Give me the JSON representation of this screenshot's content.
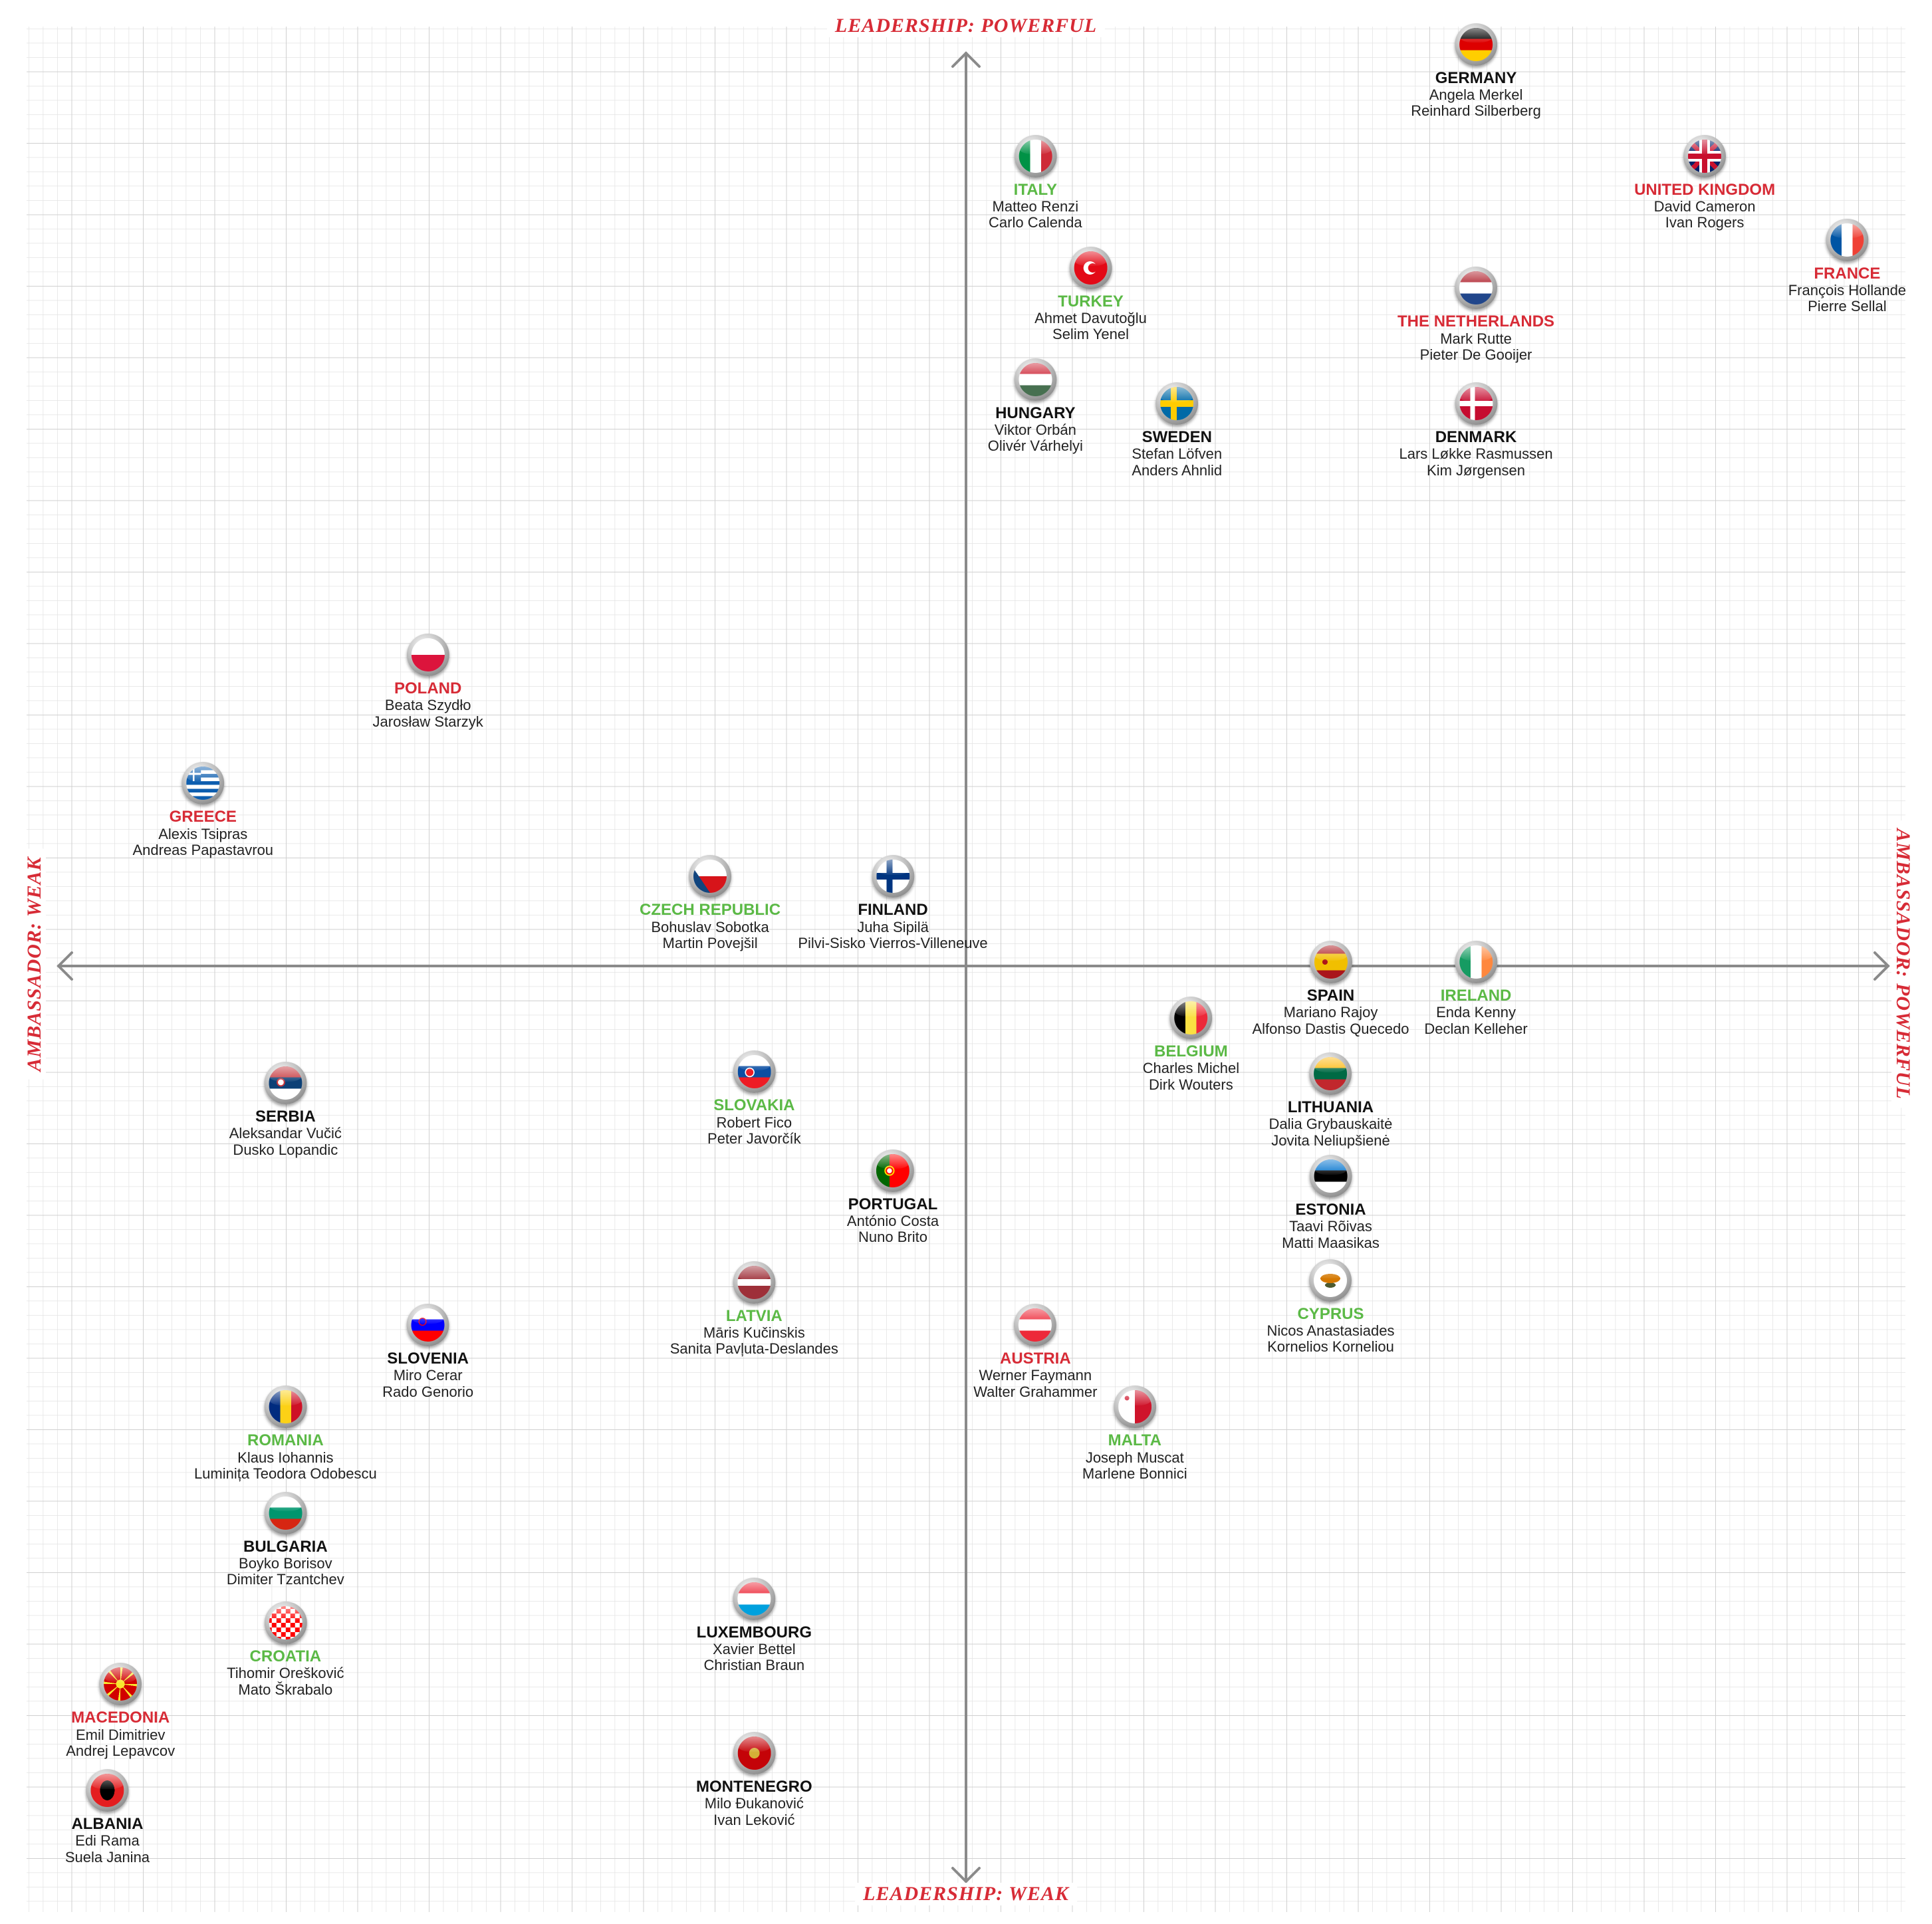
{
  "axes": {
    "top": "LEADERSHIP: POWERFUL",
    "bottom": "LEADERSHIP: WEAK",
    "left": "AMBASSADOR: WEAK",
    "right": "AMBASSADOR: POWERFUL"
  },
  "colors": {
    "red": "#d72b36",
    "green": "#5bb946",
    "black": "#111111",
    "grid": "#dddddd",
    "axis": "#8a8a8a"
  },
  "chart_data": {
    "type": "scatter",
    "x_label": "AMBASSADOR",
    "y_label": "LEADERSHIP",
    "xlim": [
      -1,
      1
    ],
    "ylim": [
      -1,
      1
    ],
    "grid": true,
    "note_colors": "country names are colored red, green or black",
    "points": [
      {
        "country": "GERMANY",
        "people": [
          "Angela Merkel",
          "Reinhard Silberberg"
        ],
        "color": "black",
        "flag": "germany",
        "x": 0.544,
        "y": 0.986
      },
      {
        "country": "ITALY",
        "people": [
          "Matteo Renzi",
          "Carlo Calenda"
        ],
        "color": "green",
        "flag": "italy",
        "x": 0.074,
        "y": 0.866
      },
      {
        "country": "UNITED KINGDOM",
        "people": [
          "David Cameron",
          "Ivan Rogers"
        ],
        "color": "red",
        "flag": "uk",
        "x": 0.788,
        "y": 0.866
      },
      {
        "country": "FRANCE",
        "people": [
          "François Hollande",
          "Pierre Sellal"
        ],
        "color": "red",
        "flag": "france",
        "x": 0.94,
        "y": 0.776
      },
      {
        "country": "TURKEY",
        "people": [
          "Ahmet Davutoğlu",
          "Selim Yenel"
        ],
        "color": "green",
        "flag": "turkey",
        "x": 0.133,
        "y": 0.746
      },
      {
        "country": "THE NETHERLANDS",
        "people": [
          "Mark Rutte",
          "Pieter De Gooijer"
        ],
        "color": "red",
        "flag": "netherlands",
        "x": 0.544,
        "y": 0.724
      },
      {
        "country": "HUNGARY",
        "people": [
          "Viktor Orbán",
          "Olivér Várhelyi"
        ],
        "color": "black",
        "flag": "hungary",
        "x": 0.074,
        "y": 0.626
      },
      {
        "country": "SWEDEN",
        "people": [
          "Stefan Löfven",
          "Anders Ahnlid"
        ],
        "color": "black",
        "flag": "sweden",
        "x": 0.225,
        "y": 0.6
      },
      {
        "country": "DENMARK",
        "people": [
          "Lars Løkke Rasmussen",
          "Kim Jørgensen"
        ],
        "color": "black",
        "flag": "denmark",
        "x": 0.544,
        "y": 0.6
      },
      {
        "country": "POLAND",
        "people": [
          "Beata Szydło",
          "Jarosław Starzyk"
        ],
        "color": "red",
        "flag": "poland",
        "x": -0.574,
        "y": 0.33
      },
      {
        "country": "GREECE",
        "people": [
          "Alexis Tsipras",
          "Andreas Papastavrou"
        ],
        "color": "red",
        "flag": "greece",
        "x": -0.814,
        "y": 0.192
      },
      {
        "country": "CZECH REPUBLIC",
        "people": [
          "Bohuslav Sobotka",
          "Martin Povejšil"
        ],
        "color": "green",
        "flag": "czech",
        "x": -0.273,
        "y": 0.092
      },
      {
        "country": "FINLAND",
        "people": [
          "Juha Sipilä",
          "Pilvi-Sisko Vierros-Villeneuve"
        ],
        "color": "black",
        "flag": "finland",
        "x": -0.078,
        "y": 0.092
      },
      {
        "country": "SPAIN",
        "people": [
          "Mariano Rajoy",
          "Alfonso Dastis Quecedo"
        ],
        "color": "black",
        "flag": "spain",
        "x": 0.389,
        "y": 0.0
      },
      {
        "country": "IRELAND",
        "people": [
          "Enda Kenny",
          "Declan Kelleher"
        ],
        "color": "green",
        "flag": "ireland",
        "x": 0.544,
        "y": 0.0
      },
      {
        "country": "BELGIUM",
        "people": [
          "Charles Michel",
          "Dirk Wouters"
        ],
        "color": "green",
        "flag": "belgium",
        "x": 0.24,
        "y": -0.06
      },
      {
        "country": "SERBIA",
        "people": [
          "Aleksandar Vučić",
          "Dusko Lopandic"
        ],
        "color": "black",
        "flag": "serbia",
        "x": -0.726,
        "y": -0.13
      },
      {
        "country": "SLOVAKIA",
        "people": [
          "Robert Fico",
          "Peter Javorčík"
        ],
        "color": "green",
        "flag": "slovakia",
        "x": -0.226,
        "y": -0.118
      },
      {
        "country": "LITHUANIA",
        "people": [
          "Dalia Grybauskaitė",
          "Jovita Neliupšienė"
        ],
        "color": "black",
        "flag": "lithuania",
        "x": 0.389,
        "y": -0.12
      },
      {
        "country": "PORTUGAL",
        "people": [
          "António Costa",
          "Nuno Brito"
        ],
        "color": "black",
        "flag": "portugal",
        "x": -0.078,
        "y": -0.224
      },
      {
        "country": "ESTONIA",
        "people": [
          "Taavi Rõivas",
          "Matti Maasikas"
        ],
        "color": "black",
        "flag": "estonia",
        "x": 0.389,
        "y": -0.23
      },
      {
        "country": "LATVIA",
        "people": [
          "Māris Kučinskis",
          "Sanita Pavļuta-Deslandes"
        ],
        "color": "green",
        "flag": "latvia",
        "x": -0.226,
        "y": -0.344
      },
      {
        "country": "CYPRUS",
        "people": [
          "Nicos Anastasiades",
          "Kornelios Korneliou"
        ],
        "color": "green",
        "flag": "cyprus",
        "x": 0.389,
        "y": -0.342
      },
      {
        "country": "SLOVENIA",
        "people": [
          "Miro Cerar",
          "Rado Genorio"
        ],
        "color": "black",
        "flag": "slovenia",
        "x": -0.574,
        "y": -0.39
      },
      {
        "country": "AUSTRIA",
        "people": [
          "Werner Faymann",
          "Walter Grahammer"
        ],
        "color": "red",
        "flag": "austria",
        "x": 0.074,
        "y": -0.39
      },
      {
        "country": "ROMANIA",
        "people": [
          "Klaus Iohannis",
          "Luminița Teodora Odobescu"
        ],
        "color": "green",
        "flag": "romania",
        "x": -0.726,
        "y": -0.478
      },
      {
        "country": "MALTA",
        "people": [
          "Joseph Muscat",
          "Marlene Bonnici"
        ],
        "color": "green",
        "flag": "malta",
        "x": 0.18,
        "y": -0.478
      },
      {
        "country": "BULGARIA",
        "people": [
          "Boyko Borisov",
          "Dimiter Tzantchev"
        ],
        "color": "black",
        "flag": "bulgaria",
        "x": -0.726,
        "y": -0.592
      },
      {
        "country": "LUXEMBOURG",
        "people": [
          "Xavier Bettel",
          "Christian Braun"
        ],
        "color": "black",
        "flag": "luxembourg",
        "x": -0.226,
        "y": -0.684
      },
      {
        "country": "CROATIA",
        "people": [
          "Tihomir Orešković",
          "Mato Škrabalo"
        ],
        "color": "green",
        "flag": "croatia",
        "x": -0.726,
        "y": -0.71
      },
      {
        "country": "MACEDONIA",
        "people": [
          "Emil Dimitriev",
          "Andrej Lepavcov"
        ],
        "color": "red",
        "flag": "macedonia",
        "x": -0.902,
        "y": -0.776
      },
      {
        "country": "MONTENEGRO",
        "people": [
          "Milo Đukanović",
          "Ivan Leković"
        ],
        "color": "black",
        "flag": "montenegro",
        "x": -0.226,
        "y": -0.85
      },
      {
        "country": "ALBANIA",
        "people": [
          "Edi Rama",
          "Suela Janina"
        ],
        "color": "black",
        "flag": "albania",
        "x": -0.916,
        "y": -0.89
      }
    ]
  }
}
